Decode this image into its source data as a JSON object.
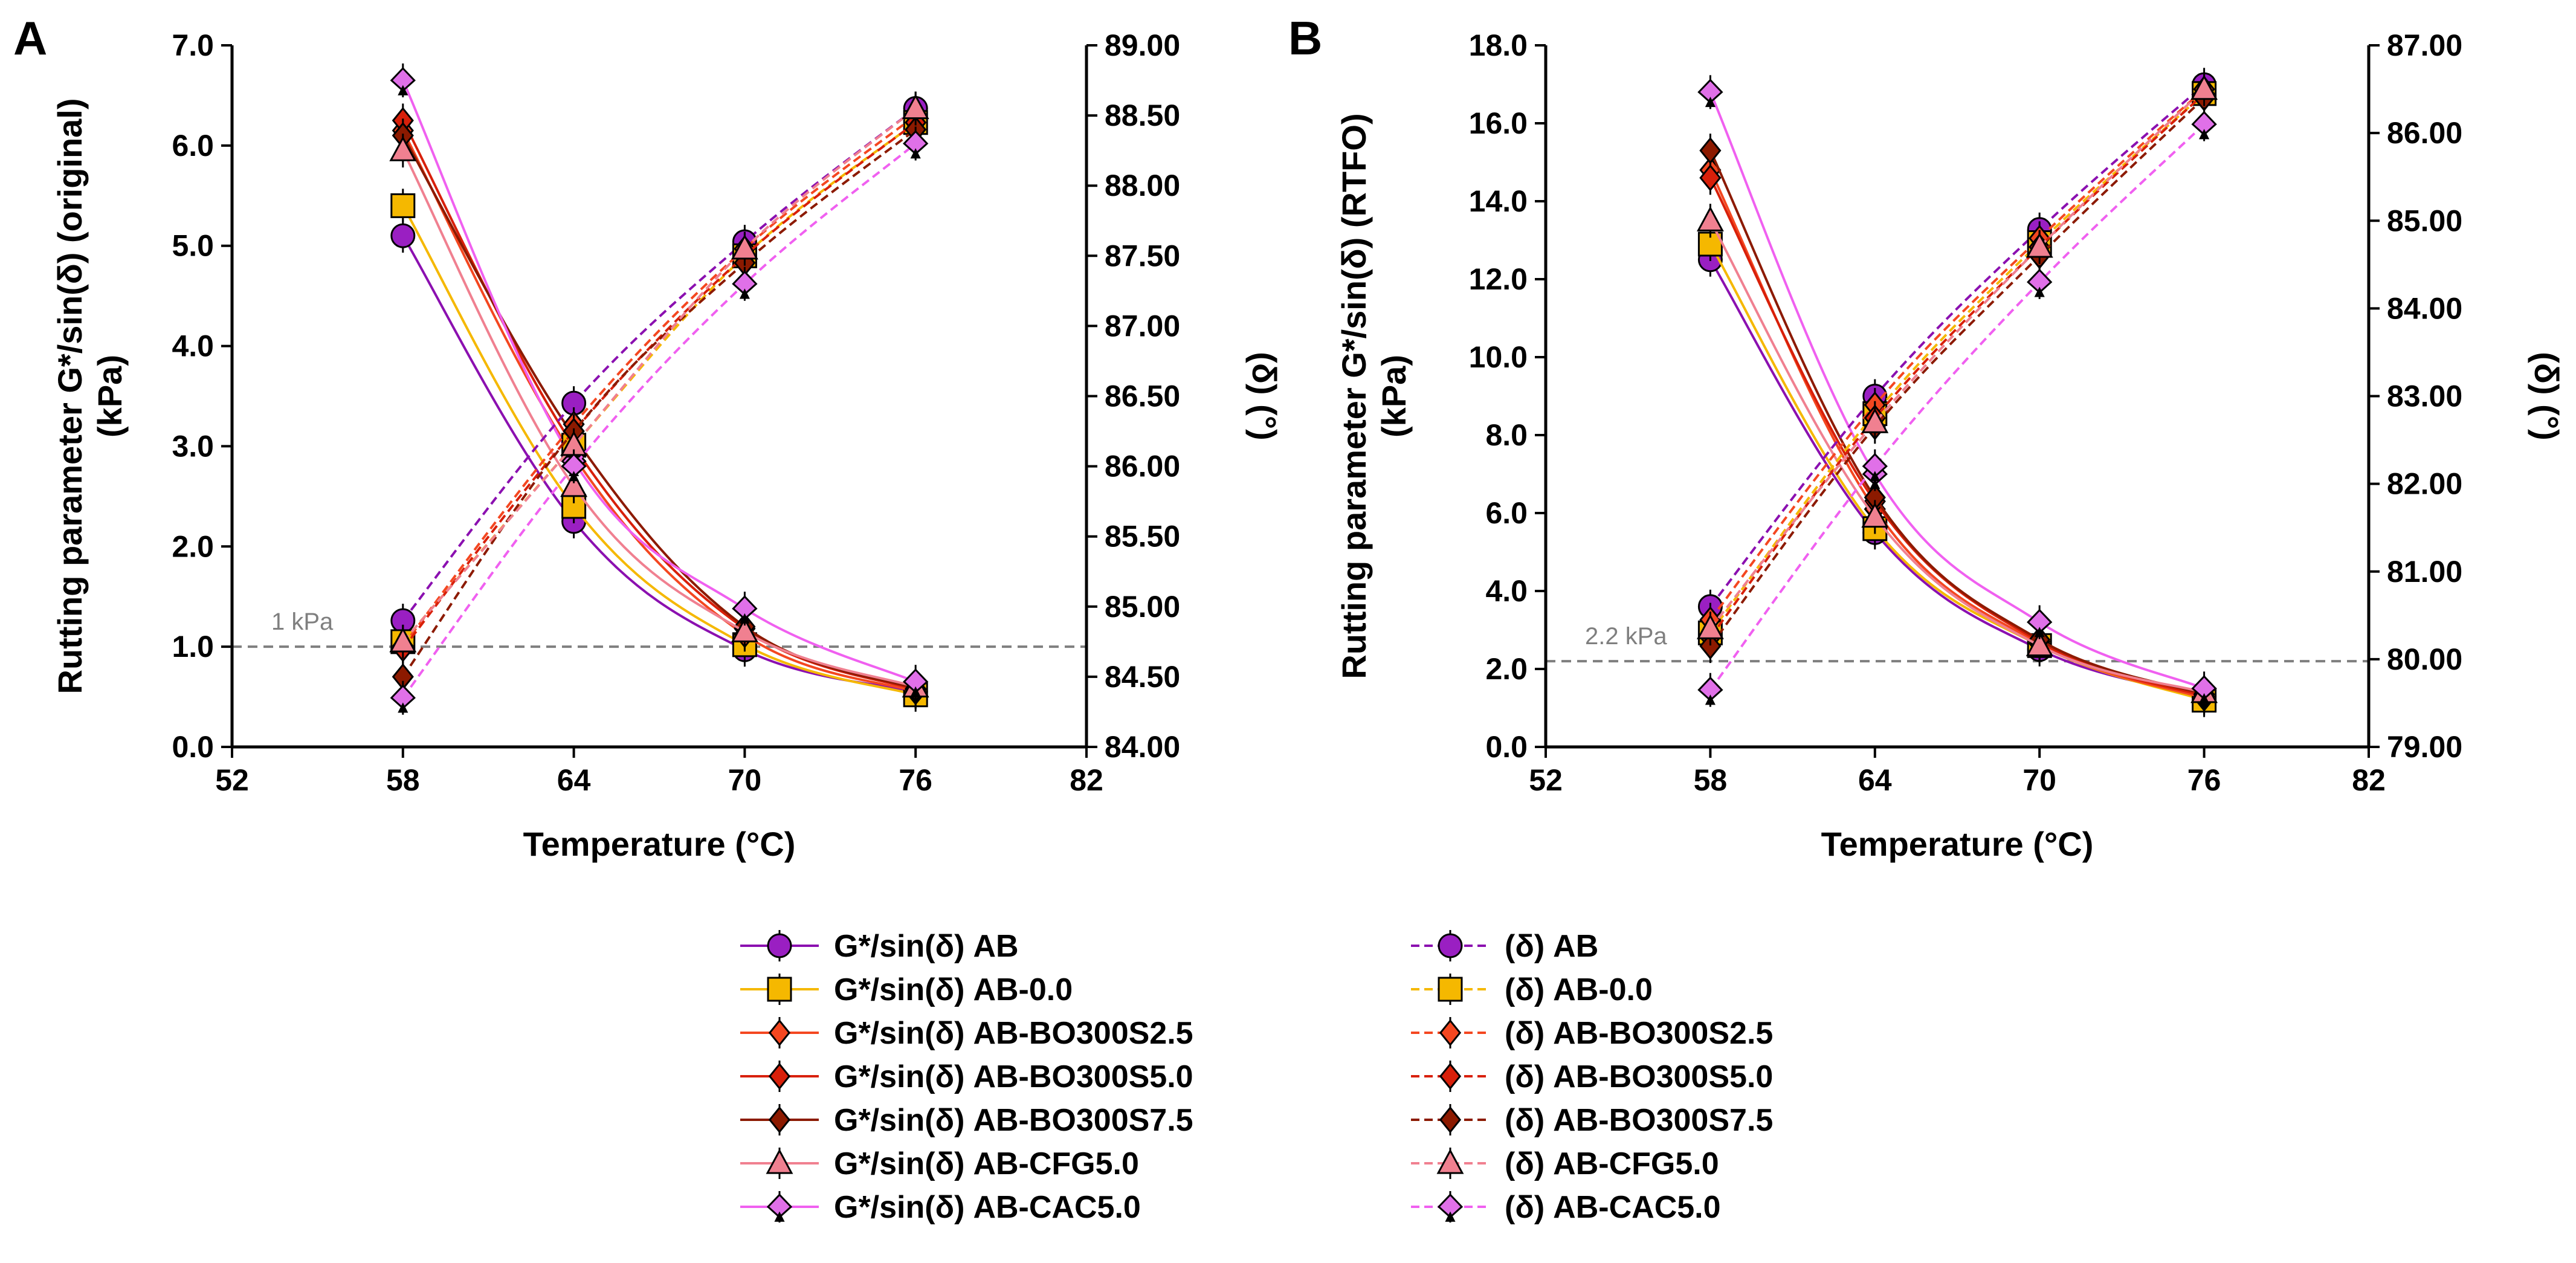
{
  "panels": [
    {
      "letter": "A"
    },
    {
      "letter": "B"
    }
  ],
  "legend": {
    "series_types": [
      "G*/sin(δ)",
      "(δ)"
    ],
    "materials": [
      {
        "name": "AB",
        "color": "#8B10B0",
        "fill": "#9a1fc2",
        "marker": "circle"
      },
      {
        "name": "AB-0.0",
        "color": "#F5B800",
        "fill": "#F5B800",
        "marker": "square"
      },
      {
        "name": "AB-BO300S2.5",
        "color": "#F44720",
        "fill": "#F44720",
        "marker": "diamond"
      },
      {
        "name": "AB-BO300S5.0",
        "color": "#D8200A",
        "fill": "#D8200A",
        "marker": "diamond"
      },
      {
        "name": "AB-BO300S7.5",
        "color": "#8C1A00",
        "fill": "#8C1A00",
        "marker": "diamond"
      },
      {
        "name": "AB-CFG5.0",
        "color": "#F08090",
        "fill": "#F08090",
        "marker": "triangle"
      },
      {
        "name": "AB-CAC5.0",
        "color": "#F060F0",
        "fill": "#E070E8",
        "marker": "spade"
      }
    ]
  },
  "chart_data": [
    {
      "type": "line",
      "panel": "A",
      "xlabel": "Temperature (°C)",
      "ylabel": "Rutting parameter G*/sin(δ) (original) (kPa)",
      "ylabel_lines": [
        "Rutting parameter G*/sin(δ) (original)",
        "(kPa)"
      ],
      "y2label": "(δ) (°)",
      "xlim": [
        52,
        82
      ],
      "xticks": [
        "52",
        "58",
        "64",
        "70",
        "76",
        "82"
      ],
      "ylim": [
        0,
        7
      ],
      "yticks": [
        "0.0",
        "1.0",
        "2.0",
        "3.0",
        "4.0",
        "5.0",
        "6.0",
        "7.0"
      ],
      "y2lim": [
        84,
        89
      ],
      "y2ticks": [
        "84.00",
        "84.50",
        "85.00",
        "85.50",
        "86.00",
        "86.50",
        "87.00",
        "87.50",
        "88.00",
        "88.50",
        "89.00"
      ],
      "threshold": {
        "value": 1.0,
        "label": "1 kPa"
      },
      "x": [
        58,
        64,
        70,
        76
      ],
      "series": [
        {
          "name": "G*/sin(δ) AB",
          "axis": "left",
          "values": [
            5.1,
            2.25,
            0.97,
            0.55
          ]
        },
        {
          "name": "G*/sin(δ) AB-0.0",
          "axis": "left",
          "values": [
            5.4,
            2.4,
            1.02,
            0.52
          ]
        },
        {
          "name": "G*/sin(δ) AB-BO300S2.5",
          "axis": "left",
          "values": [
            6.15,
            2.9,
            1.12,
            0.55
          ]
        },
        {
          "name": "G*/sin(δ) AB-BO300S5.0",
          "axis": "left",
          "values": [
            6.25,
            3.0,
            1.18,
            0.57
          ]
        },
        {
          "name": "G*/sin(δ) AB-BO300S7.5",
          "axis": "left",
          "values": [
            6.1,
            3.1,
            1.2,
            0.58
          ]
        },
        {
          "name": "G*/sin(δ) AB-CFG5.0",
          "axis": "left",
          "values": [
            5.95,
            2.6,
            1.15,
            0.6
          ]
        },
        {
          "name": "G*/sin(δ) AB-CAC5.0",
          "axis": "left",
          "values": [
            6.65,
            2.85,
            1.38,
            0.65
          ]
        },
        {
          "name": "(δ) AB",
          "axis": "right",
          "values": [
            84.9,
            86.45,
            87.6,
            88.55
          ]
        },
        {
          "name": "(δ) AB-0.0",
          "axis": "right",
          "values": [
            84.75,
            86.15,
            87.5,
            88.45
          ]
        },
        {
          "name": "(δ) AB-BO300S2.5",
          "axis": "right",
          "values": [
            84.72,
            86.3,
            87.55,
            88.5
          ]
        },
        {
          "name": "(δ) AB-BO300S5.0",
          "axis": "right",
          "values": [
            84.7,
            86.25,
            87.5,
            88.45
          ]
        },
        {
          "name": "(δ) AB-BO300S7.5",
          "axis": "right",
          "values": [
            84.5,
            86.25,
            87.45,
            88.4
          ]
        },
        {
          "name": "(δ) AB-CFG5.0",
          "axis": "right",
          "values": [
            84.75,
            86.15,
            87.55,
            88.55
          ]
        },
        {
          "name": "(δ) AB-CAC5.0",
          "axis": "right",
          "values": [
            84.35,
            86.0,
            87.3,
            88.3
          ]
        }
      ]
    },
    {
      "type": "line",
      "panel": "B",
      "xlabel": "Temperature (°C)",
      "ylabel": "Rutting parameter G*/sin(δ) (RTFO) (kPa)",
      "ylabel_lines": [
        "Rutting parameter G*/sin(δ) (RTFO)",
        "(kPa)"
      ],
      "y2label": "(δ) (°)",
      "xlim": [
        52,
        82
      ],
      "xticks": [
        "52",
        "58",
        "64",
        "70",
        "76",
        "82"
      ],
      "ylim": [
        0,
        18
      ],
      "yticks": [
        "0.0",
        "2.0",
        "4.0",
        "6.0",
        "8.0",
        "10.0",
        "12.0",
        "14.0",
        "16.0",
        "18.0"
      ],
      "y2lim": [
        79,
        87
      ],
      "y2ticks": [
        "79.00",
        "80.00",
        "81.00",
        "82.00",
        "83.00",
        "84.00",
        "85.00",
        "86.00",
        "87.00"
      ],
      "threshold": {
        "value": 2.2,
        "label": "2.2 kPa"
      },
      "x": [
        58,
        64,
        70,
        76
      ],
      "series": [
        {
          "name": "G*/sin(δ) AB",
          "axis": "left",
          "values": [
            12.5,
            5.5,
            2.5,
            1.3
          ]
        },
        {
          "name": "G*/sin(δ) AB-0.0",
          "axis": "left",
          "values": [
            12.9,
            5.6,
            2.6,
            1.2
          ]
        },
        {
          "name": "G*/sin(δ) AB-BO300S2.5",
          "axis": "left",
          "values": [
            14.8,
            6.1,
            2.65,
            1.25
          ]
        },
        {
          "name": "G*/sin(δ) AB-BO300S5.0",
          "axis": "left",
          "values": [
            14.6,
            6.3,
            2.7,
            1.3
          ]
        },
        {
          "name": "G*/sin(δ) AB-BO300S7.5",
          "axis": "left",
          "values": [
            15.3,
            6.4,
            2.75,
            1.35
          ]
        },
        {
          "name": "G*/sin(δ) AB-CFG5.0",
          "axis": "left",
          "values": [
            13.5,
            5.9,
            2.6,
            1.4
          ]
        },
        {
          "name": "G*/sin(δ) AB-CAC5.0",
          "axis": "left",
          "values": [
            16.8,
            7.0,
            3.2,
            1.5
          ]
        },
        {
          "name": "(δ) AB",
          "axis": "right",
          "values": [
            80.6,
            83.0,
            84.9,
            86.55
          ]
        },
        {
          "name": "(δ) AB-0.0",
          "axis": "right",
          "values": [
            80.3,
            82.8,
            84.75,
            86.45
          ]
        },
        {
          "name": "(δ) AB-BO300S2.5",
          "axis": "right",
          "values": [
            80.45,
            82.9,
            84.8,
            86.5
          ]
        },
        {
          "name": "(δ) AB-BO300S5.0",
          "axis": "right",
          "values": [
            80.25,
            82.75,
            84.7,
            86.45
          ]
        },
        {
          "name": "(δ) AB-BO300S7.5",
          "axis": "right",
          "values": [
            80.15,
            82.65,
            84.6,
            86.4
          ]
        },
        {
          "name": "(δ) AB-CFG5.0",
          "axis": "right",
          "values": [
            80.35,
            82.7,
            84.7,
            86.5
          ]
        },
        {
          "name": "(δ) AB-CAC5.0",
          "axis": "right",
          "values": [
            79.65,
            82.2,
            84.3,
            86.1
          ]
        }
      ]
    }
  ]
}
